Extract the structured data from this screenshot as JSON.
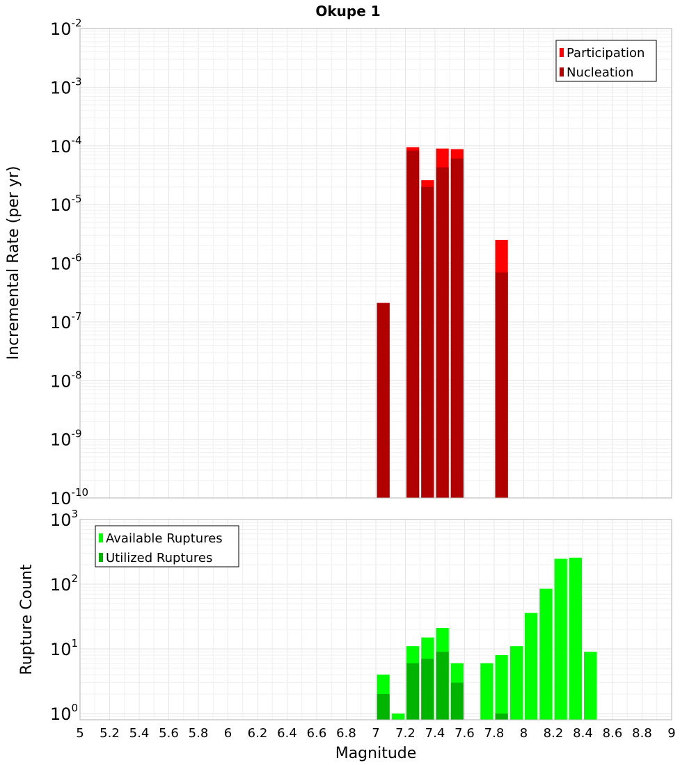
{
  "chart_data": [
    {
      "type": "bar",
      "title": "Okupe 1",
      "xlabel": "",
      "ylabel": "Incremental Rate (per yr)",
      "yscale": "log",
      "ylim_exponents": [
        -10,
        -2
      ],
      "xlim": [
        5,
        9
      ],
      "grid": true,
      "legend_position": "top-right",
      "bar_width": 0.1,
      "series": [
        {
          "name": "Participation",
          "color": "#ff0000",
          "x": [
            7.05,
            7.25,
            7.35,
            7.45,
            7.55,
            7.85
          ],
          "values": [
            2.1e-07,
            9.5e-05,
            2.6e-05,
            9e-05,
            8.8e-05,
            2.5e-06
          ]
        },
        {
          "name": "Nucleation",
          "color": "#b00000",
          "x": [
            7.05,
            7.25,
            7.35,
            7.45,
            7.55,
            7.85
          ],
          "values": [
            2.1e-07,
            8.3e-05,
            2e-05,
            4.3e-05,
            6.1e-05,
            7e-07
          ]
        }
      ]
    },
    {
      "type": "bar",
      "title": "",
      "xlabel": "Magnitude",
      "ylabel": "Rupture Count",
      "yscale": "log",
      "ylim_exponents": [
        0,
        3
      ],
      "ymin": 0.8,
      "xlim": [
        5,
        9
      ],
      "grid": true,
      "legend_position": "top-left",
      "bar_width": 0.1,
      "series": [
        {
          "name": "Available Ruptures",
          "color": "#00ff00",
          "x": [
            7.05,
            7.15,
            7.25,
            7.35,
            7.45,
            7.55,
            7.75,
            7.85,
            7.95,
            8.05,
            8.15,
            8.25,
            8.35,
            8.45
          ],
          "values": [
            4,
            1,
            11,
            15,
            21,
            6,
            6,
            8,
            11,
            36,
            85,
            247,
            257,
            9
          ]
        },
        {
          "name": "Utilized Ruptures",
          "color": "#00b400",
          "x": [
            7.05,
            7.25,
            7.35,
            7.45,
            7.55,
            7.85
          ],
          "values": [
            2,
            6,
            7,
            9,
            3,
            1
          ]
        }
      ],
      "xticks": [
        "5",
        "5.2",
        "5.4",
        "5.6",
        "5.8",
        "6",
        "6.2",
        "6.4",
        "6.6",
        "6.8",
        "7",
        "7.2",
        "7.4",
        "7.6",
        "7.8",
        "8",
        "8.2",
        "8.4",
        "8.6",
        "8.8",
        "9"
      ]
    }
  ]
}
